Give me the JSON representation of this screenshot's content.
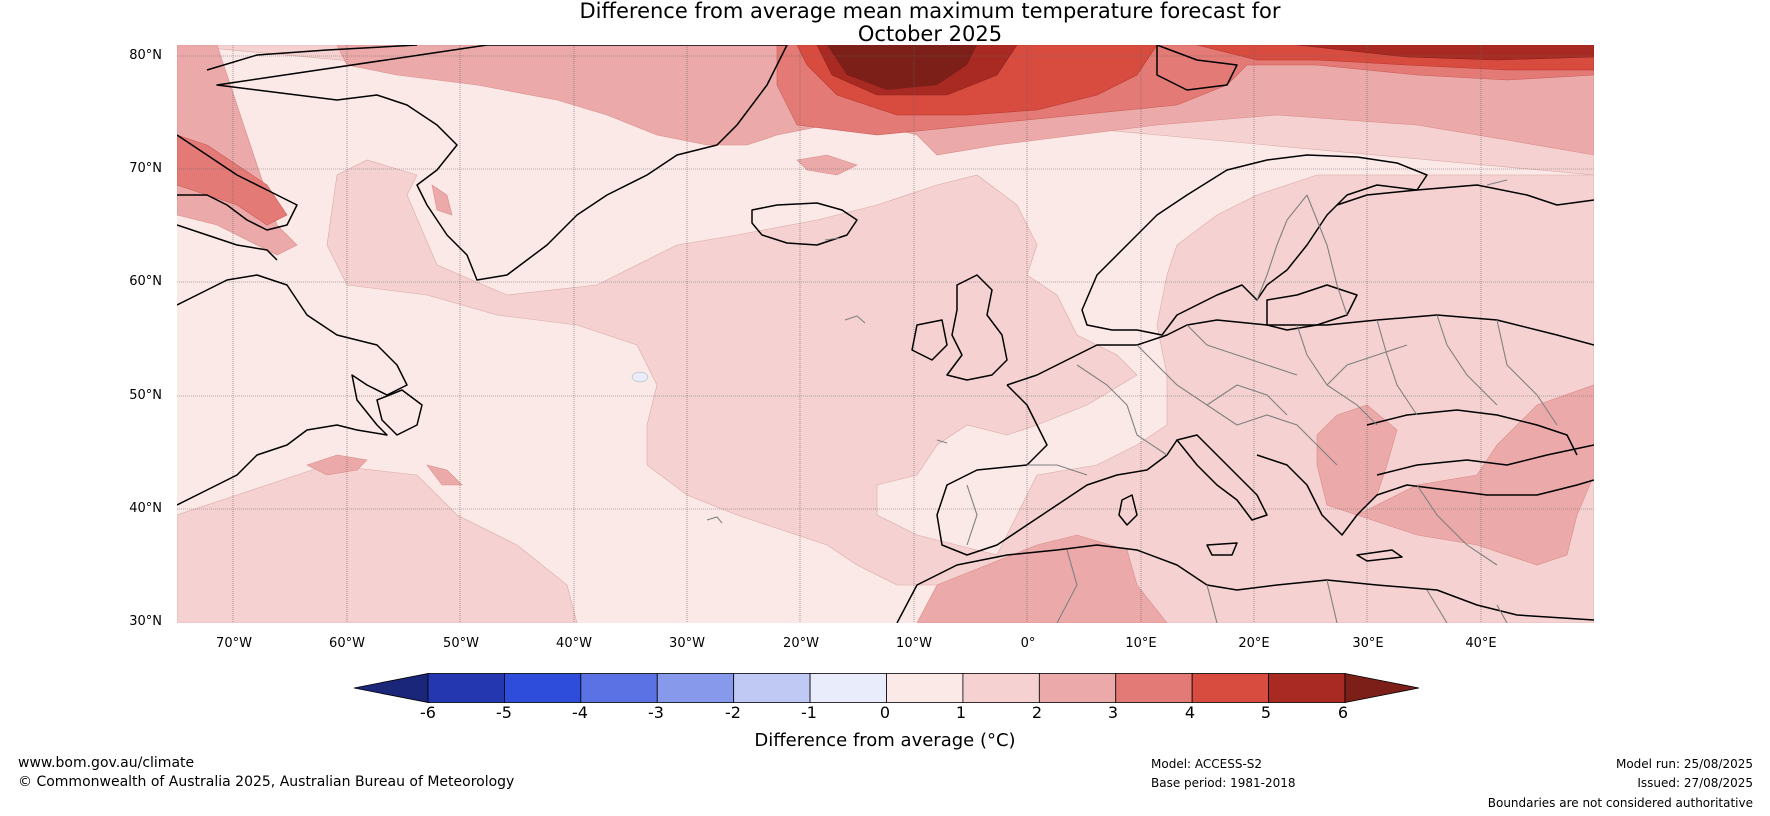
{
  "title": {
    "line1": "Difference from average mean maximum temperature forecast for",
    "line2": "October 2025"
  },
  "map": {
    "lat_labels": [
      "80°N",
      "70°N",
      "60°N",
      "50°N",
      "40°N",
      "30°N"
    ],
    "lon_labels": [
      "70°W",
      "60°W",
      "50°W",
      "40°W",
      "30°W",
      "20°W",
      "10°W",
      "0°",
      "10°E",
      "20°E",
      "30°E",
      "40°E"
    ],
    "extent": {
      "lon_min": -75,
      "lon_max": 50,
      "lat_min": 30,
      "lat_max": 81
    },
    "land_outline_color": "#000000",
    "border_color": "#808080"
  },
  "colorbar": {
    "label": "Difference from average (°C)",
    "ticks": [
      "-6",
      "-5",
      "-4",
      "-3",
      "-2",
      "-1",
      "0",
      "1",
      "2",
      "3",
      "4",
      "5",
      "6"
    ],
    "colors": [
      "#19267a",
      "#2437b0",
      "#2f4ddb",
      "#5a72e4",
      "#8799ea",
      "#c0c9f3",
      "#e8ecfb",
      "#fbe9e7",
      "#f5d2d1",
      "#ebaaa9",
      "#e37a75",
      "#d84c40",
      "#a82a22",
      "#7b1f18"
    ]
  },
  "footer": {
    "website": "www.bom.gov.au/climate",
    "copyright": "© Commonwealth of Australia 2025, Australian Bureau of Meteorology",
    "model": "Model: ACCESS-S2",
    "base_period": "Base period: 1981-2018",
    "model_run": "Model run: 25/08/2025",
    "issued": "Issued: 27/08/2025",
    "disclaimer": "Boundaries are not considered authoritative"
  }
}
